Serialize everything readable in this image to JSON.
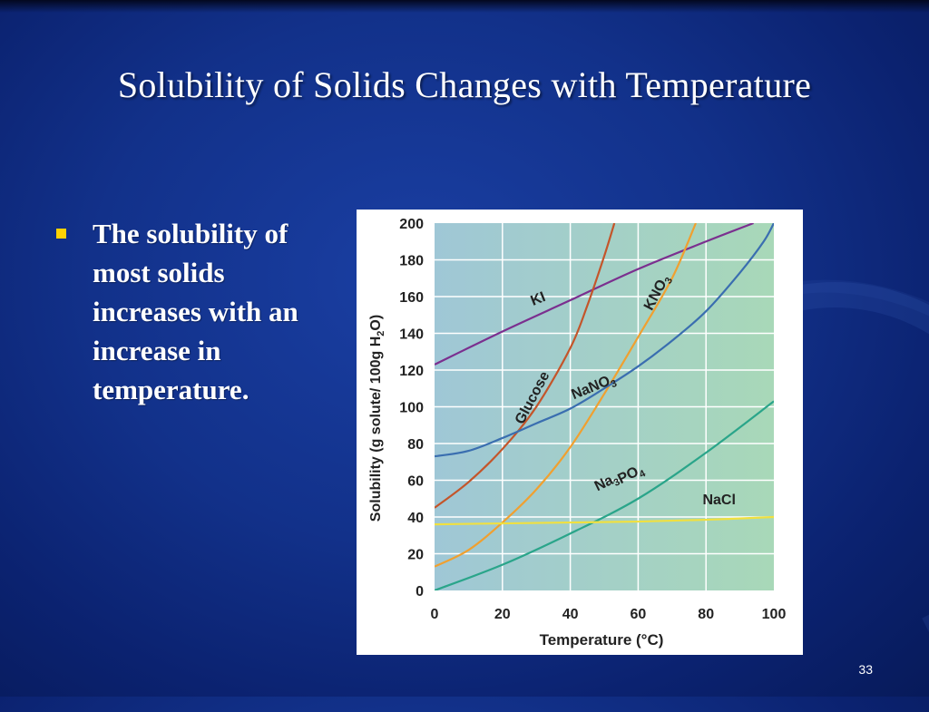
{
  "slide": {
    "title": "Solubility of Solids Changes with Temperature",
    "bullet": "The solubility of most solids increases with an increase in temperature.",
    "page_number": "33"
  },
  "chart_data": {
    "type": "line",
    "title": "",
    "xlabel": "Temperature (°C)",
    "ylabel": "Solubility (g solute/ 100g H2O)",
    "xlim": [
      0,
      100
    ],
    "ylim": [
      0,
      200
    ],
    "x_ticks": [
      "0",
      "20",
      "40",
      "60",
      "80",
      "100"
    ],
    "y_ticks": [
      "0",
      "20",
      "40",
      "60",
      "80",
      "100",
      "120",
      "140",
      "160",
      "180",
      "200"
    ],
    "grid": true,
    "background_colors": [
      "#9fc7d6",
      "#a8d8b8"
    ],
    "series": [
      {
        "name": "KI",
        "color": "#7b2f8f",
        "points": [
          [
            0,
            123
          ],
          [
            20,
            141
          ],
          [
            40,
            158
          ],
          [
            60,
            175
          ],
          [
            80,
            190
          ],
          [
            94,
            200
          ]
        ]
      },
      {
        "name": "Glucose",
        "color": "#c4552a",
        "points": [
          [
            0,
            45
          ],
          [
            10,
            59
          ],
          [
            20,
            77
          ],
          [
            30,
            100
          ],
          [
            40,
            132
          ],
          [
            45,
            155
          ],
          [
            50,
            182
          ],
          [
            53,
            200
          ]
        ]
      },
      {
        "name": "KNO3",
        "color": "#f0a030",
        "points": [
          [
            0,
            13
          ],
          [
            10,
            22
          ],
          [
            20,
            37
          ],
          [
            30,
            55
          ],
          [
            40,
            78
          ],
          [
            50,
            107
          ],
          [
            60,
            138
          ],
          [
            70,
            170
          ],
          [
            77,
            200
          ]
        ]
      },
      {
        "name": "NaNO3",
        "color": "#3a6eb0",
        "points": [
          [
            0,
            73
          ],
          [
            10,
            76
          ],
          [
            20,
            83
          ],
          [
            30,
            91
          ],
          [
            40,
            99
          ],
          [
            50,
            110
          ],
          [
            60,
            122
          ],
          [
            70,
            136
          ],
          [
            80,
            152
          ],
          [
            90,
            173
          ],
          [
            97,
            190
          ],
          [
            100,
            200
          ]
        ]
      },
      {
        "name": "Na3PO4",
        "color": "#2aa58a",
        "points": [
          [
            0,
            0
          ],
          [
            20,
            14
          ],
          [
            40,
            31
          ],
          [
            60,
            50
          ],
          [
            80,
            75
          ],
          [
            100,
            103
          ]
        ]
      },
      {
        "name": "NaCl",
        "color": "#f0e040",
        "points": [
          [
            0,
            36
          ],
          [
            20,
            36.5
          ],
          [
            40,
            37
          ],
          [
            60,
            37.5
          ],
          [
            80,
            38.5
          ],
          [
            100,
            40
          ]
        ]
      }
    ],
    "labels": [
      "KI",
      "Glucose",
      "NaNO3",
      "Na3PO4",
      "NaCl"
    ]
  }
}
